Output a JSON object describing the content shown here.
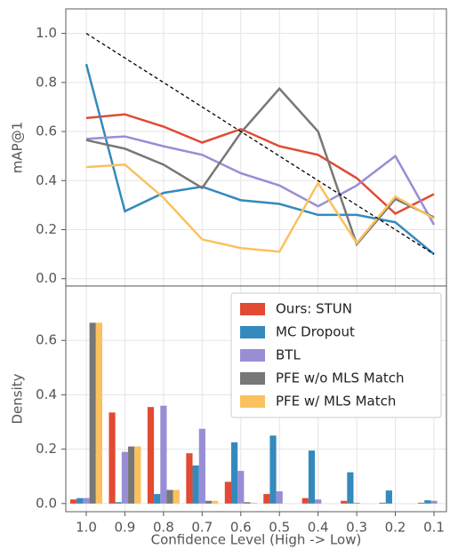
{
  "chart_data": [
    {
      "type": "line",
      "ylabel": "mAP@1",
      "ylim": [
        -0.03,
        1.1
      ],
      "yticks": [
        {
          "value": 0,
          "label": "0.0"
        },
        0.2,
        0.4,
        0.6,
        0.8,
        {
          "value": 1,
          "label": "1.0"
        }
      ],
      "grid": true,
      "series": [
        {
          "color": "#e24a33",
          "values": [
            0.655,
            0.67,
            0.62,
            0.555,
            0.61,
            0.54,
            0.505,
            0.41,
            0.265,
            0.345
          ]
        },
        {
          "color": "#348abd",
          "values": [
            0.875,
            0.275,
            0.35,
            0.375,
            0.32,
            0.305,
            0.26,
            0.26,
            0.23,
            0.1
          ]
        },
        {
          "color": "#988ed5",
          "values": [
            0.57,
            0.58,
            0.54,
            0.505,
            0.43,
            0.38,
            0.295,
            0.38,
            0.5,
            0.22
          ]
        },
        {
          "color": "#777777",
          "values": [
            0.565,
            0.53,
            0.465,
            0.37,
            0.595,
            0.775,
            0.6,
            0.14,
            0.325,
            0.25
          ]
        },
        {
          "color": "#fbc15e",
          "values": [
            0.455,
            0.465,
            0.33,
            0.16,
            0.125,
            0.11,
            0.39,
            0.145,
            0.335,
            0.245
          ]
        },
        {
          "color": "#000000",
          "dash": true,
          "values": [
            1.0,
            0.9,
            0.8,
            0.7,
            0.6,
            0.5,
            0.4,
            0.3,
            0.2,
            0.1
          ]
        }
      ]
    },
    {
      "type": "bar",
      "ylabel": "Density",
      "xlabel": "Confidence Level (High -> Low)",
      "categories": [
        "1.0",
        "0.9",
        "0.8",
        "0.7",
        "0.6",
        "0.5",
        "0.4",
        "0.3",
        "0.2",
        "0.1"
      ],
      "ylim": [
        -0.03,
        0.8
      ],
      "yticks": [
        {
          "value": 0,
          "label": "0.0"
        },
        0.2,
        0.4,
        0.6
      ],
      "grid": true,
      "legend": "upper right",
      "series": [
        {
          "name": "Ours: STUN",
          "color": "#e24a33",
          "values": [
            0.015,
            0.335,
            0.355,
            0.185,
            0.08,
            0.035,
            0.02,
            0.01,
            0.003,
            0.003
          ]
        },
        {
          "name": "MC Dropout",
          "color": "#348abd",
          "values": [
            0.02,
            0.005,
            0.035,
            0.14,
            0.225,
            0.25,
            0.195,
            0.115,
            0.048,
            0.012
          ]
        },
        {
          "name": "BTL",
          "color": "#988ed5",
          "values": [
            0.02,
            0.19,
            0.36,
            0.275,
            0.12,
            0.045,
            0.015,
            0.003,
            0,
            0.01
          ]
        },
        {
          "name": "PFE w/o MLS Match",
          "color": "#777777",
          "values": [
            0.665,
            0.21,
            0.05,
            0.01,
            0.005,
            0,
            0,
            0,
            0,
            0
          ]
        },
        {
          "name": "PFE w/ MLS Match",
          "color": "#fbc15e",
          "values": [
            0.665,
            0.21,
            0.05,
            0.01,
            0.003,
            0,
            0,
            0,
            0,
            0
          ]
        }
      ]
    }
  ]
}
